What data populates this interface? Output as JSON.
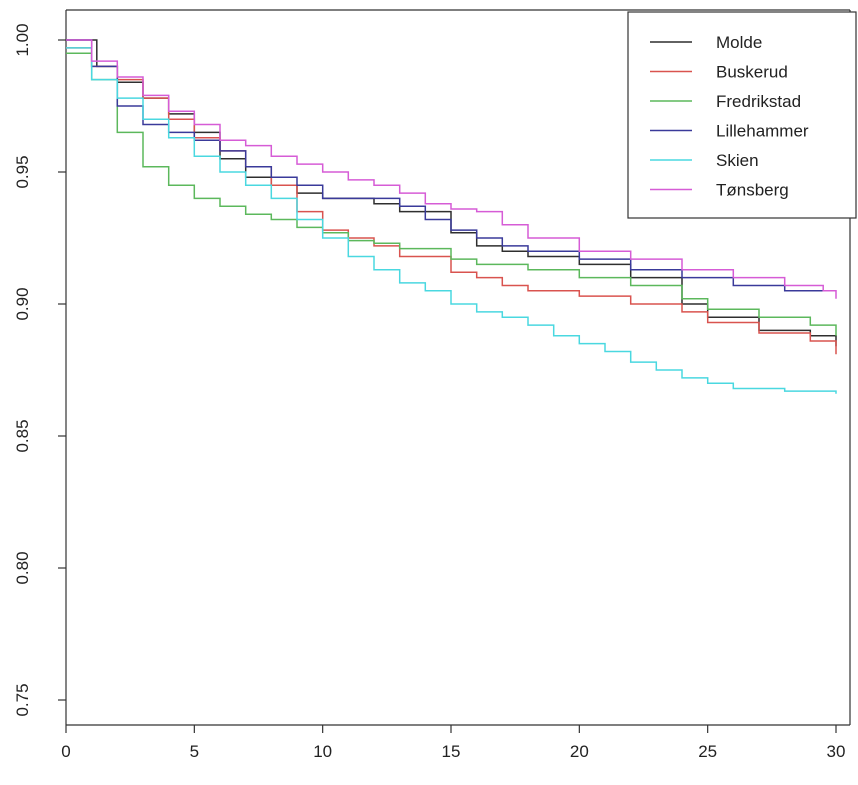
{
  "chart_data": {
    "type": "line",
    "title": "",
    "xlabel": "",
    "ylabel": "",
    "xlim": [
      0,
      30
    ],
    "ylim": [
      0.74,
      1.0
    ],
    "x_ticks": [
      0,
      5,
      10,
      15,
      20,
      25,
      30
    ],
    "x_tick_labels": [
      "0",
      "5",
      "10",
      "15",
      "20",
      "25",
      "30"
    ],
    "y_ticks": [
      0.75,
      0.8,
      0.85,
      0.9,
      0.95,
      1.0
    ],
    "y_tick_labels": [
      "0.75",
      "0.80",
      "0.85",
      "0.90",
      "0.95",
      "1.00"
    ],
    "grid": false,
    "legend_position": "top-right",
    "series": [
      {
        "name": "Molde",
        "color": "#2f2f2f",
        "points": [
          [
            0,
            1.0
          ],
          [
            0.8,
            1.0
          ],
          [
            1.2,
            0.99
          ],
          [
            2,
            0.984
          ],
          [
            3,
            0.978
          ],
          [
            4,
            0.972
          ],
          [
            5,
            0.965
          ],
          [
            6,
            0.955
          ],
          [
            7,
            0.948
          ],
          [
            8,
            0.945
          ],
          [
            9,
            0.942
          ],
          [
            10,
            0.94
          ],
          [
            12,
            0.938
          ],
          [
            13,
            0.935
          ],
          [
            15,
            0.927
          ],
          [
            16,
            0.922
          ],
          [
            17,
            0.92
          ],
          [
            18,
            0.918
          ],
          [
            20,
            0.915
          ],
          [
            22,
            0.91
          ],
          [
            24,
            0.9
          ],
          [
            25,
            0.895
          ],
          [
            27,
            0.89
          ],
          [
            29,
            0.888
          ],
          [
            30,
            0.884
          ]
        ]
      },
      {
        "name": "Buskerud",
        "color": "#d9534f",
        "points": [
          [
            0,
            0.997
          ],
          [
            1,
            0.99
          ],
          [
            2,
            0.985
          ],
          [
            3,
            0.978
          ],
          [
            4,
            0.97
          ],
          [
            5,
            0.963
          ],
          [
            6,
            0.958
          ],
          [
            7,
            0.952
          ],
          [
            8,
            0.945
          ],
          [
            9,
            0.935
          ],
          [
            10,
            0.928
          ],
          [
            11,
            0.925
          ],
          [
            12,
            0.922
          ],
          [
            13,
            0.918
          ],
          [
            15,
            0.912
          ],
          [
            16,
            0.91
          ],
          [
            17,
            0.907
          ],
          [
            18,
            0.905
          ],
          [
            20,
            0.903
          ],
          [
            22,
            0.9
          ],
          [
            24,
            0.897
          ],
          [
            25,
            0.893
          ],
          [
            27,
            0.889
          ],
          [
            29,
            0.886
          ],
          [
            30,
            0.881
          ]
        ]
      },
      {
        "name": "Fredrikstad",
        "color": "#5cb85c",
        "points": [
          [
            0,
            0.995
          ],
          [
            1,
            0.985
          ],
          [
            2,
            0.965
          ],
          [
            3,
            0.952
          ],
          [
            4,
            0.945
          ],
          [
            5,
            0.94
          ],
          [
            6,
            0.937
          ],
          [
            7,
            0.934
          ],
          [
            8,
            0.932
          ],
          [
            9,
            0.929
          ],
          [
            10,
            0.927
          ],
          [
            11,
            0.924
          ],
          [
            12,
            0.923
          ],
          [
            13,
            0.921
          ],
          [
            15,
            0.917
          ],
          [
            16,
            0.915
          ],
          [
            18,
            0.913
          ],
          [
            20,
            0.91
          ],
          [
            22,
            0.907
          ],
          [
            24,
            0.902
          ],
          [
            25,
            0.898
          ],
          [
            27,
            0.895
          ],
          [
            29,
            0.892
          ],
          [
            30,
            0.888
          ]
        ]
      },
      {
        "name": "Lillehammer",
        "color": "#3a3a9a",
        "points": [
          [
            0,
            1.0
          ],
          [
            0.5,
            1.0
          ],
          [
            1,
            0.99
          ],
          [
            2,
            0.975
          ],
          [
            3,
            0.968
          ],
          [
            4,
            0.965
          ],
          [
            5,
            0.962
          ],
          [
            6,
            0.958
          ],
          [
            7,
            0.952
          ],
          [
            8,
            0.948
          ],
          [
            9,
            0.945
          ],
          [
            10,
            0.94
          ],
          [
            12,
            0.94
          ],
          [
            13,
            0.937
          ],
          [
            14,
            0.932
          ],
          [
            15,
            0.928
          ],
          [
            16,
            0.925
          ],
          [
            17,
            0.922
          ],
          [
            18,
            0.92
          ],
          [
            20,
            0.917
          ],
          [
            22,
            0.913
          ],
          [
            24,
            0.91
          ],
          [
            26,
            0.907
          ],
          [
            28,
            0.905
          ],
          [
            30,
            0.905
          ]
        ]
      },
      {
        "name": "Skien",
        "color": "#4ad8e0",
        "points": [
          [
            0,
            0.997
          ],
          [
            1,
            0.985
          ],
          [
            2,
            0.978
          ],
          [
            3,
            0.97
          ],
          [
            4,
            0.963
          ],
          [
            5,
            0.956
          ],
          [
            6,
            0.95
          ],
          [
            7,
            0.945
          ],
          [
            8,
            0.94
          ],
          [
            9,
            0.932
          ],
          [
            10,
            0.925
          ],
          [
            11,
            0.918
          ],
          [
            12,
            0.913
          ],
          [
            13,
            0.908
          ],
          [
            14,
            0.905
          ],
          [
            15,
            0.9
          ],
          [
            16,
            0.897
          ],
          [
            17,
            0.895
          ],
          [
            18,
            0.892
          ],
          [
            19,
            0.888
          ],
          [
            20,
            0.885
          ],
          [
            21,
            0.882
          ],
          [
            22,
            0.878
          ],
          [
            23,
            0.875
          ],
          [
            24,
            0.872
          ],
          [
            25,
            0.87
          ],
          [
            26,
            0.868
          ],
          [
            28,
            0.867
          ],
          [
            30,
            0.866
          ]
        ]
      },
      {
        "name": "Tønsberg",
        "color": "#d65cd6",
        "points": [
          [
            0,
            1.0
          ],
          [
            0.5,
            1.0
          ],
          [
            1,
            0.992
          ],
          [
            2,
            0.986
          ],
          [
            3,
            0.979
          ],
          [
            4,
            0.973
          ],
          [
            5,
            0.968
          ],
          [
            6,
            0.962
          ],
          [
            7,
            0.96
          ],
          [
            8,
            0.956
          ],
          [
            9,
            0.953
          ],
          [
            10,
            0.95
          ],
          [
            11,
            0.947
          ],
          [
            12,
            0.945
          ],
          [
            13,
            0.942
          ],
          [
            14,
            0.938
          ],
          [
            15,
            0.936
          ],
          [
            16,
            0.935
          ],
          [
            17,
            0.93
          ],
          [
            18,
            0.925
          ],
          [
            20,
            0.92
          ],
          [
            22,
            0.917
          ],
          [
            24,
            0.913
          ],
          [
            26,
            0.91
          ],
          [
            28,
            0.907
          ],
          [
            29.5,
            0.905
          ],
          [
            30,
            0.902
          ]
        ]
      }
    ]
  }
}
